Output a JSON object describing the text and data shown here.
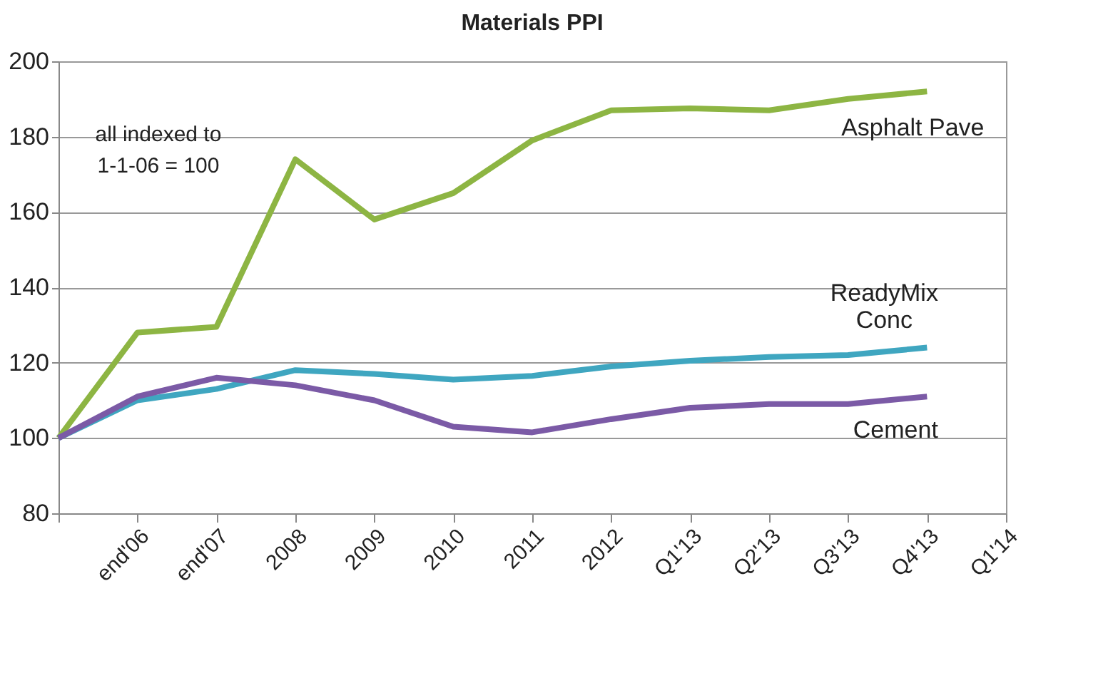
{
  "chart_data": {
    "type": "line",
    "title": "Materials PPI",
    "categories": [
      null,
      "end'06",
      "end'07",
      "2008",
      "2009",
      "2010",
      "2011",
      "2012",
      "Q1'13",
      "Q2'13",
      "Q3'13",
      "Q4'13",
      "Q1'14"
    ],
    "series": [
      {
        "name": "Asphalt Pave",
        "color": "#8db543",
        "values": [
          100,
          128,
          129.5,
          174,
          158,
          165,
          179,
          187,
          187.5,
          187,
          190,
          192,
          null
        ]
      },
      {
        "name": "ReadyMix Conc",
        "color": "#3fa6c0",
        "values": [
          100,
          110,
          113,
          118,
          117,
          115.5,
          116.5,
          119,
          120.5,
          121.5,
          122,
          124,
          null
        ]
      },
      {
        "name": "Cement",
        "color": "#7b5aa6",
        "values": [
          100,
          111,
          116,
          114,
          110,
          103,
          101.5,
          105,
          108,
          109,
          109,
          111,
          null
        ]
      }
    ],
    "ylim": [
      80,
      200
    ],
    "yticks": [
      80,
      100,
      120,
      140,
      160,
      180,
      200
    ],
    "grid": "y",
    "legend": false,
    "annotations": [
      "all indexed to 1-1-06 = 100"
    ]
  }
}
